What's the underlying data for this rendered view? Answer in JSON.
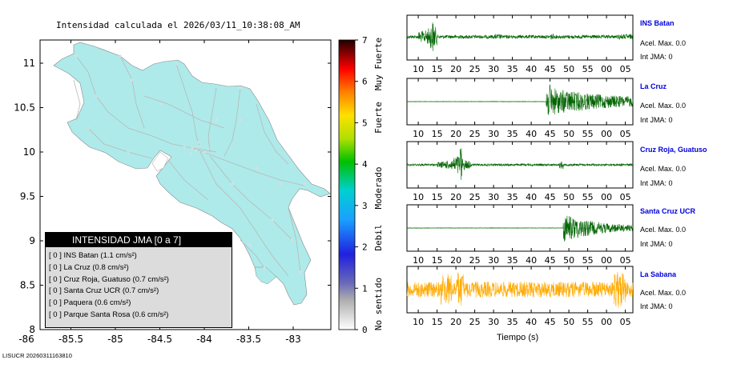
{
  "map": {
    "title": "Intensidad calculada el 2026/03/11_10:38:08_AM",
    "x_ticks": [
      "-86",
      "-85.5",
      "-85",
      "-84.5",
      "-84",
      "-83.5",
      "-83"
    ],
    "y_ticks": [
      "11",
      "10.5",
      "10",
      "9.5",
      "9",
      "8.5",
      "8"
    ],
    "land_color": "#aeeaea"
  },
  "colorbar": {
    "ticks": [
      "7",
      "6",
      "5",
      "4",
      "3",
      "2",
      "1",
      "0"
    ],
    "labels": [
      "Muy Fuerte",
      "Fuerte",
      "Moderado",
      "Debil",
      "No sentido"
    ]
  },
  "legend": {
    "title": "INTENSIDAD JMA [0 a 7]",
    "items": [
      "[ 0 ]  INS Batan (1.1 cm/s²)",
      "[ 0 ]  La Cruz (0.8 cm/s²)",
      "[ 0 ]  Cruz Roja, Guatuso (0.7 cm/s²)",
      "[ 0 ]  Santa Cruz UCR (0.7 cm/s²)",
      "[ 0 ]  Paquera (0.6 cm/s²)",
      "[ 0 ]  Parque Santa Rosa (0.6 cm/s²)"
    ]
  },
  "stations": [
    {
      "name": "INS Batan",
      "acel": "Acel. Max. 0.0",
      "int": "Int JMA: 0",
      "color": "#006400"
    },
    {
      "name": "La Cruz",
      "acel": "Acel. Max. 0.0",
      "int": "Int JMA: 0",
      "color": "#006400"
    },
    {
      "name": "Cruz Roja, Guatuso",
      "acel": "Acel. Max. 0.0",
      "int": "Int JMA: 0",
      "color": "#006400"
    },
    {
      "name": "Santa Cruz UCR",
      "acel": "Acel. Max. 0.0",
      "int": "Int JMA: 0",
      "color": "#006400"
    },
    {
      "name": "La Sabana",
      "acel": "Acel. Max. 0.0",
      "int": "Int JMA: 0",
      "color": "#ffaa00"
    }
  ],
  "trace_ticks": [
    "10",
    "15",
    "20",
    "25",
    "30",
    "35",
    "40",
    "45",
    "50",
    "55",
    "00",
    "05"
  ],
  "xlabel": "Tiempo (s)",
  "footer": "LISUCR 20260311163810",
  "chart_data": {
    "type": "line",
    "x_range_seconds": [
      7,
      67
    ],
    "series": [
      {
        "name": "INS Batan",
        "event_onset": [
          11,
          14
        ]
      },
      {
        "name": "La Cruz",
        "event_onset": [
          44
        ]
      },
      {
        "name": "Cruz Roja, Guatuso",
        "event_onset": [
          17,
          21,
          48
        ]
      },
      {
        "name": "Santa Cruz UCR",
        "event_onset": [
          48.5
        ]
      },
      {
        "name": "La Sabana",
        "event_onset": [
          8,
          18,
          21,
          63
        ]
      }
    ]
  }
}
